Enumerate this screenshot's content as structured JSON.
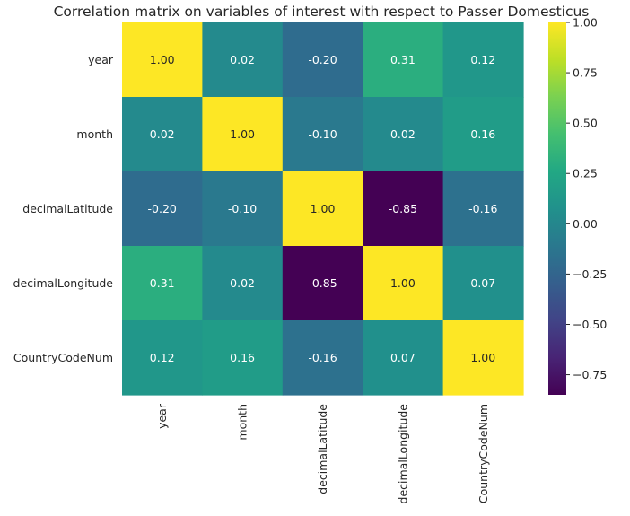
{
  "chart_data": {
    "type": "heatmap",
    "title": "Correlation matrix on variables of interest with respect to Passer Domesticus",
    "rows": [
      "year",
      "month",
      "decimalLatitude",
      "decimalLongitude",
      "CountryCodeNum"
    ],
    "columns": [
      "year",
      "month",
      "decimalLatitude",
      "decimalLongitude",
      "CountryCodeNum"
    ],
    "values": [
      [
        1.0,
        0.02,
        -0.2,
        0.31,
        0.12
      ],
      [
        0.02,
        1.0,
        -0.1,
        0.02,
        0.16
      ],
      [
        -0.2,
        -0.1,
        1.0,
        -0.85,
        -0.16
      ],
      [
        0.31,
        0.02,
        -0.85,
        1.0,
        0.07
      ],
      [
        0.12,
        0.16,
        -0.16,
        0.07,
        1.0
      ]
    ],
    "value_format": "0.00",
    "colormap": "viridis",
    "colorbar": {
      "range": [
        -0.85,
        1.0
      ],
      "ticks": [
        1.0,
        0.75,
        0.5,
        0.25,
        0.0,
        -0.25,
        -0.5,
        -0.75
      ],
      "tick_labels": [
        "1.00",
        "0.75",
        "0.50",
        "0.25",
        "0.00",
        "−0.25",
        "−0.50",
        "−0.75"
      ]
    },
    "grid": false
  }
}
